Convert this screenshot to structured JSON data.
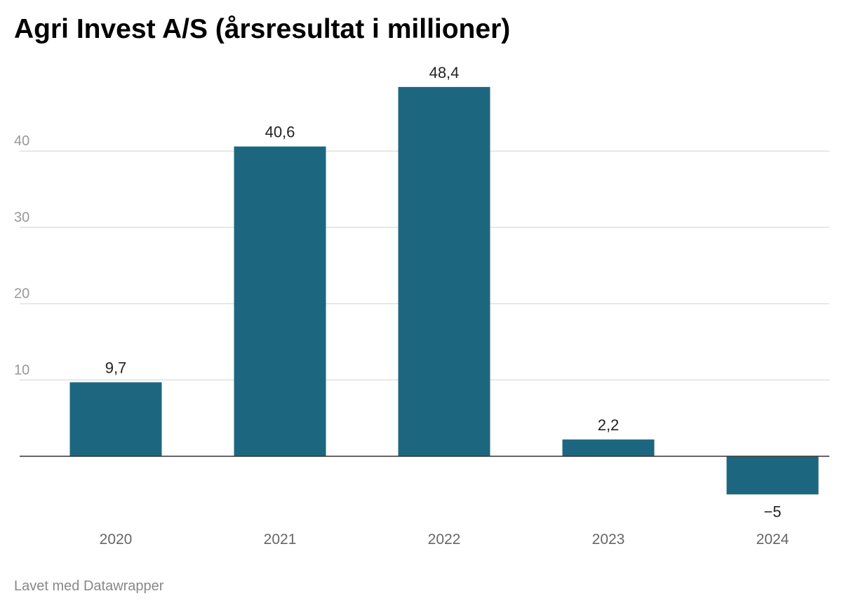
{
  "title": "Agri Invest A/S (årsresultat i millioner)",
  "footer": "Lavet med Datawrapper",
  "colors": {
    "bar": "#1c677f",
    "grid": "#e0e0e0",
    "baseline": "#333333",
    "tick_label": "#999999",
    "category_label": "#666666",
    "value_label": "#222222"
  },
  "chart_data": {
    "type": "bar",
    "categories": [
      "2020",
      "2021",
      "2022",
      "2023",
      "2024"
    ],
    "values": [
      9.7,
      40.6,
      48.4,
      2.2,
      -5
    ],
    "value_labels": [
      "9,7",
      "40,6",
      "48,4",
      "2,2",
      "−5"
    ],
    "yticks": [
      10,
      20,
      30,
      40
    ],
    "ytick_labels": [
      "10",
      "20",
      "30",
      "40"
    ],
    "title": "Agri Invest A/S (årsresultat i millioner)",
    "xlabel": "",
    "ylabel": "",
    "grid": true
  }
}
